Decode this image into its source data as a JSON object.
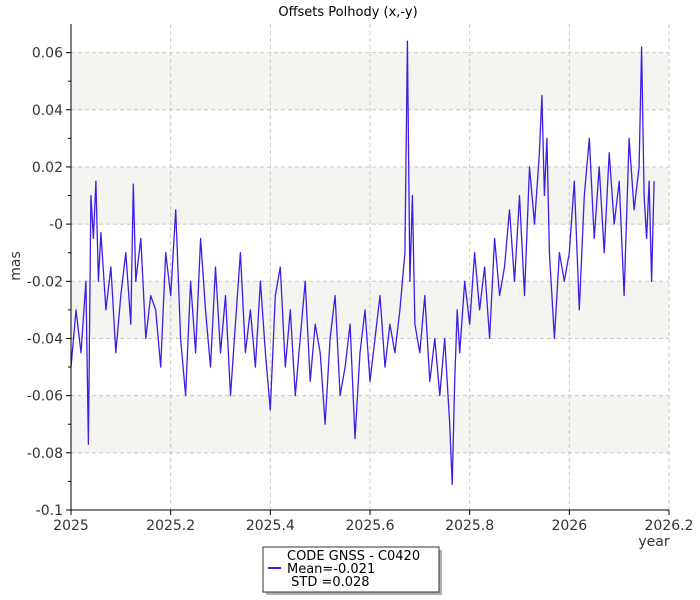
{
  "chart_data": {
    "type": "line",
    "title": "Offsets Polhody (x,-y)",
    "xlabel": "year",
    "ylabel": "mas",
    "xlim": [
      2025.0,
      2026.2
    ],
    "ylim": [
      -0.1,
      0.07
    ],
    "x_ticks": [
      2025,
      2025.2,
      2025.4,
      2025.6,
      2025.8,
      2026,
      2026.2
    ],
    "x_tick_labels": [
      "2025",
      "2025.2",
      "2025.4",
      "2025.6",
      "2025.8",
      "2026",
      "2026.2"
    ],
    "y_ticks": [
      -0.1,
      -0.08,
      -0.06,
      -0.04,
      -0.02,
      0,
      0.02,
      0.04,
      0.06
    ],
    "y_tick_labels": [
      "-0.1",
      "-0.08",
      "-0.06",
      "-0.04",
      "-0.02",
      "-0",
      "0.02",
      "0.04",
      "0.06"
    ],
    "grid": true,
    "legend_position": "bottom-center",
    "series": [
      {
        "name": "CODE GNSS - C0420",
        "color": "#3b1fe6",
        "x": [
          2025.0,
          2025.01,
          2025.02,
          2025.03,
          2025.035,
          2025.04,
          2025.045,
          2025.05,
          2025.055,
          2025.06,
          2025.07,
          2025.08,
          2025.09,
          2025.1,
          2025.11,
          2025.12,
          2025.125,
          2025.13,
          2025.14,
          2025.15,
          2025.16,
          2025.17,
          2025.18,
          2025.19,
          2025.2,
          2025.21,
          2025.22,
          2025.23,
          2025.24,
          2025.25,
          2025.26,
          2025.27,
          2025.28,
          2025.29,
          2025.3,
          2025.31,
          2025.32,
          2025.33,
          2025.34,
          2025.35,
          2025.36,
          2025.37,
          2025.38,
          2025.39,
          2025.4,
          2025.41,
          2025.42,
          2025.43,
          2025.44,
          2025.45,
          2025.46,
          2025.47,
          2025.48,
          2025.49,
          2025.5,
          2025.51,
          2025.52,
          2025.53,
          2025.54,
          2025.55,
          2025.56,
          2025.57,
          2025.58,
          2025.59,
          2025.6,
          2025.61,
          2025.62,
          2025.63,
          2025.64,
          2025.65,
          2025.66,
          2025.67,
          2025.675,
          2025.68,
          2025.685,
          2025.69,
          2025.7,
          2025.71,
          2025.72,
          2025.73,
          2025.74,
          2025.75,
          2025.76,
          2025.765,
          2025.77,
          2025.775,
          2025.78,
          2025.79,
          2025.8,
          2025.81,
          2025.82,
          2025.83,
          2025.84,
          2025.85,
          2025.86,
          2025.87,
          2025.88,
          2025.89,
          2025.9,
          2025.91,
          2025.92,
          2025.93,
          2025.94,
          2025.945,
          2025.95,
          2025.955,
          2025.96,
          2025.97,
          2025.98,
          2025.99,
          2026.0,
          2026.01,
          2026.02,
          2026.03,
          2026.04,
          2026.05,
          2026.06,
          2026.07,
          2026.08,
          2026.09,
          2026.1,
          2026.11,
          2026.12,
          2026.13,
          2026.14,
          2026.145,
          2026.15,
          2026.155,
          2026.16,
          2026.165,
          2026.17
        ],
        "y": [
          -0.05,
          -0.03,
          -0.045,
          -0.02,
          -0.077,
          0.01,
          -0.005,
          0.015,
          -0.02,
          -0.003,
          -0.03,
          -0.015,
          -0.045,
          -0.025,
          -0.01,
          -0.035,
          0.014,
          -0.02,
          -0.005,
          -0.04,
          -0.025,
          -0.03,
          -0.05,
          -0.01,
          -0.025,
          0.005,
          -0.04,
          -0.06,
          -0.02,
          -0.045,
          -0.005,
          -0.03,
          -0.05,
          -0.015,
          -0.045,
          -0.025,
          -0.06,
          -0.035,
          -0.01,
          -0.045,
          -0.03,
          -0.05,
          -0.02,
          -0.045,
          -0.065,
          -0.025,
          -0.015,
          -0.05,
          -0.03,
          -0.06,
          -0.04,
          -0.02,
          -0.055,
          -0.035,
          -0.045,
          -0.07,
          -0.04,
          -0.025,
          -0.06,
          -0.05,
          -0.035,
          -0.075,
          -0.045,
          -0.03,
          -0.055,
          -0.04,
          -0.025,
          -0.05,
          -0.035,
          -0.045,
          -0.03,
          -0.01,
          0.064,
          -0.02,
          0.01,
          -0.035,
          -0.045,
          -0.025,
          -0.055,
          -0.04,
          -0.06,
          -0.04,
          -0.07,
          -0.091,
          -0.055,
          -0.03,
          -0.045,
          -0.02,
          -0.035,
          -0.01,
          -0.03,
          -0.015,
          -0.04,
          -0.005,
          -0.025,
          -0.015,
          0.005,
          -0.02,
          0.01,
          -0.025,
          0.02,
          0.0,
          0.025,
          0.045,
          0.01,
          0.03,
          -0.01,
          -0.04,
          -0.01,
          -0.02,
          -0.01,
          0.015,
          -0.03,
          0.01,
          0.03,
          -0.005,
          0.02,
          -0.01,
          0.025,
          0.0,
          0.015,
          -0.025,
          0.03,
          0.005,
          0.02,
          0.062,
          0.01,
          -0.005,
          0.015,
          -0.02,
          0.015
        ]
      }
    ],
    "legend": {
      "label": "CODE GNSS - C0420",
      "mean": "Mean=-0.021",
      "std": " STD =0.028"
    }
  }
}
